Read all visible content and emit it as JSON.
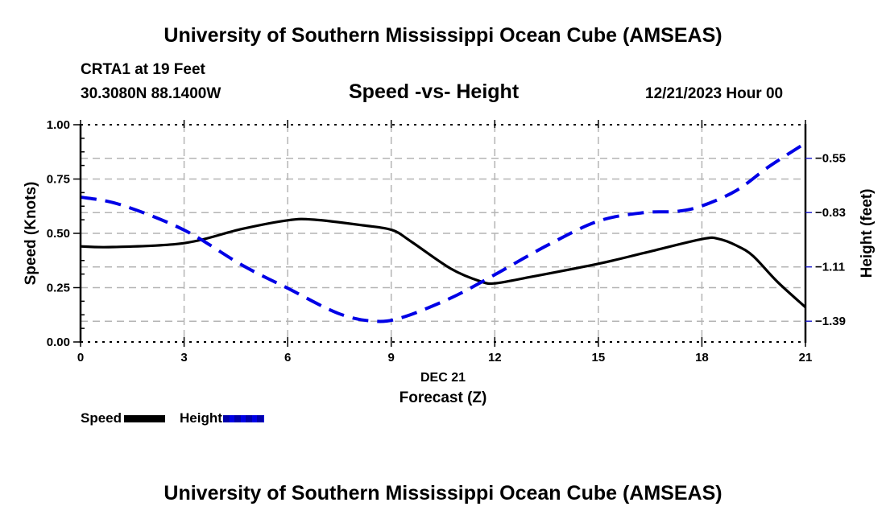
{
  "header": {
    "title": "University of Southern Mississippi Ocean Cube (AMSEAS)",
    "station": "CRTA1 at 19 Feet",
    "coordinates": "30.3080N  88.1400W",
    "subtitle": "Speed -vs- Height",
    "datetime": "12/21/2023 Hour 00"
  },
  "footer": {
    "title": "University of Southern Mississippi Ocean Cube (AMSEAS)"
  },
  "legend": {
    "items": [
      {
        "label": "Speed",
        "color": "#000000",
        "style": "solid"
      },
      {
        "label": "Height",
        "color": "#0000e6",
        "style": "dashed"
      }
    ]
  },
  "chart_data": {
    "type": "line",
    "title": "Speed -vs- Height",
    "xlabel": "Forecast (Z)",
    "xlabel_date": "DEC 21",
    "ylabel_left": "Speed (Knots)",
    "ylabel_right": "Height (feet)",
    "xlim": [
      0,
      21
    ],
    "x_ticks": [
      0,
      3,
      6,
      9,
      12,
      15,
      18,
      21
    ],
    "x_tick_labels": [
      "0",
      "3",
      "6",
      "9",
      "12",
      "15",
      "18",
      "21"
    ],
    "ylim_left": [
      0,
      1
    ],
    "y_left_ticks": [
      0.0,
      0.25,
      0.5,
      0.75,
      1.0
    ],
    "y_left_tick_labels": [
      "0.00",
      "0.25",
      "0.50",
      "0.75",
      "1.00"
    ],
    "ylim_right": [
      -1.497,
      -0.377
    ],
    "y_right_ticks": [
      -0.55,
      -0.83,
      -1.11,
      -1.39
    ],
    "y_right_tick_labels": [
      "−0.55",
      "−0.83",
      "−1.11",
      "−1.39"
    ],
    "grid": true,
    "legend_position": "bottom-left",
    "series": [
      {
        "name": "Speed",
        "axis": "left",
        "color": "#000000",
        "dash": "solid",
        "x": [
          0,
          0.93,
          3.0,
          4.67,
          6.0,
          6.77,
          8.17,
          9.03,
          9.57,
          10.73,
          11.6,
          12.02,
          12.83,
          15.0,
          16.33,
          18.01,
          18.5,
          19.0,
          19.48,
          20.18,
          21.0
        ],
        "values": [
          0.44,
          0.437,
          0.455,
          0.52,
          0.56,
          0.563,
          0.537,
          0.515,
          0.463,
          0.337,
          0.278,
          0.27,
          0.293,
          0.36,
          0.41,
          0.474,
          0.474,
          0.444,
          0.396,
          0.278,
          0.16
        ]
      },
      {
        "name": "Height",
        "axis": "right",
        "color": "#0000e6",
        "dash": "dashed",
        "x": [
          0,
          1.17,
          3.0,
          4.67,
          6.0,
          7.47,
          8.52,
          9.33,
          10.73,
          11.95,
          13.53,
          15.0,
          16.33,
          17.27,
          18.01,
          19.0,
          19.95,
          21.0
        ],
        "values": [
          -0.75,
          -0.79,
          -0.92,
          -1.1,
          -1.22,
          -1.35,
          -1.39,
          -1.37,
          -1.27,
          -1.155,
          -0.998,
          -0.874,
          -0.83,
          -0.824,
          -0.795,
          -0.716,
          -0.592,
          -0.472
        ]
      }
    ]
  }
}
